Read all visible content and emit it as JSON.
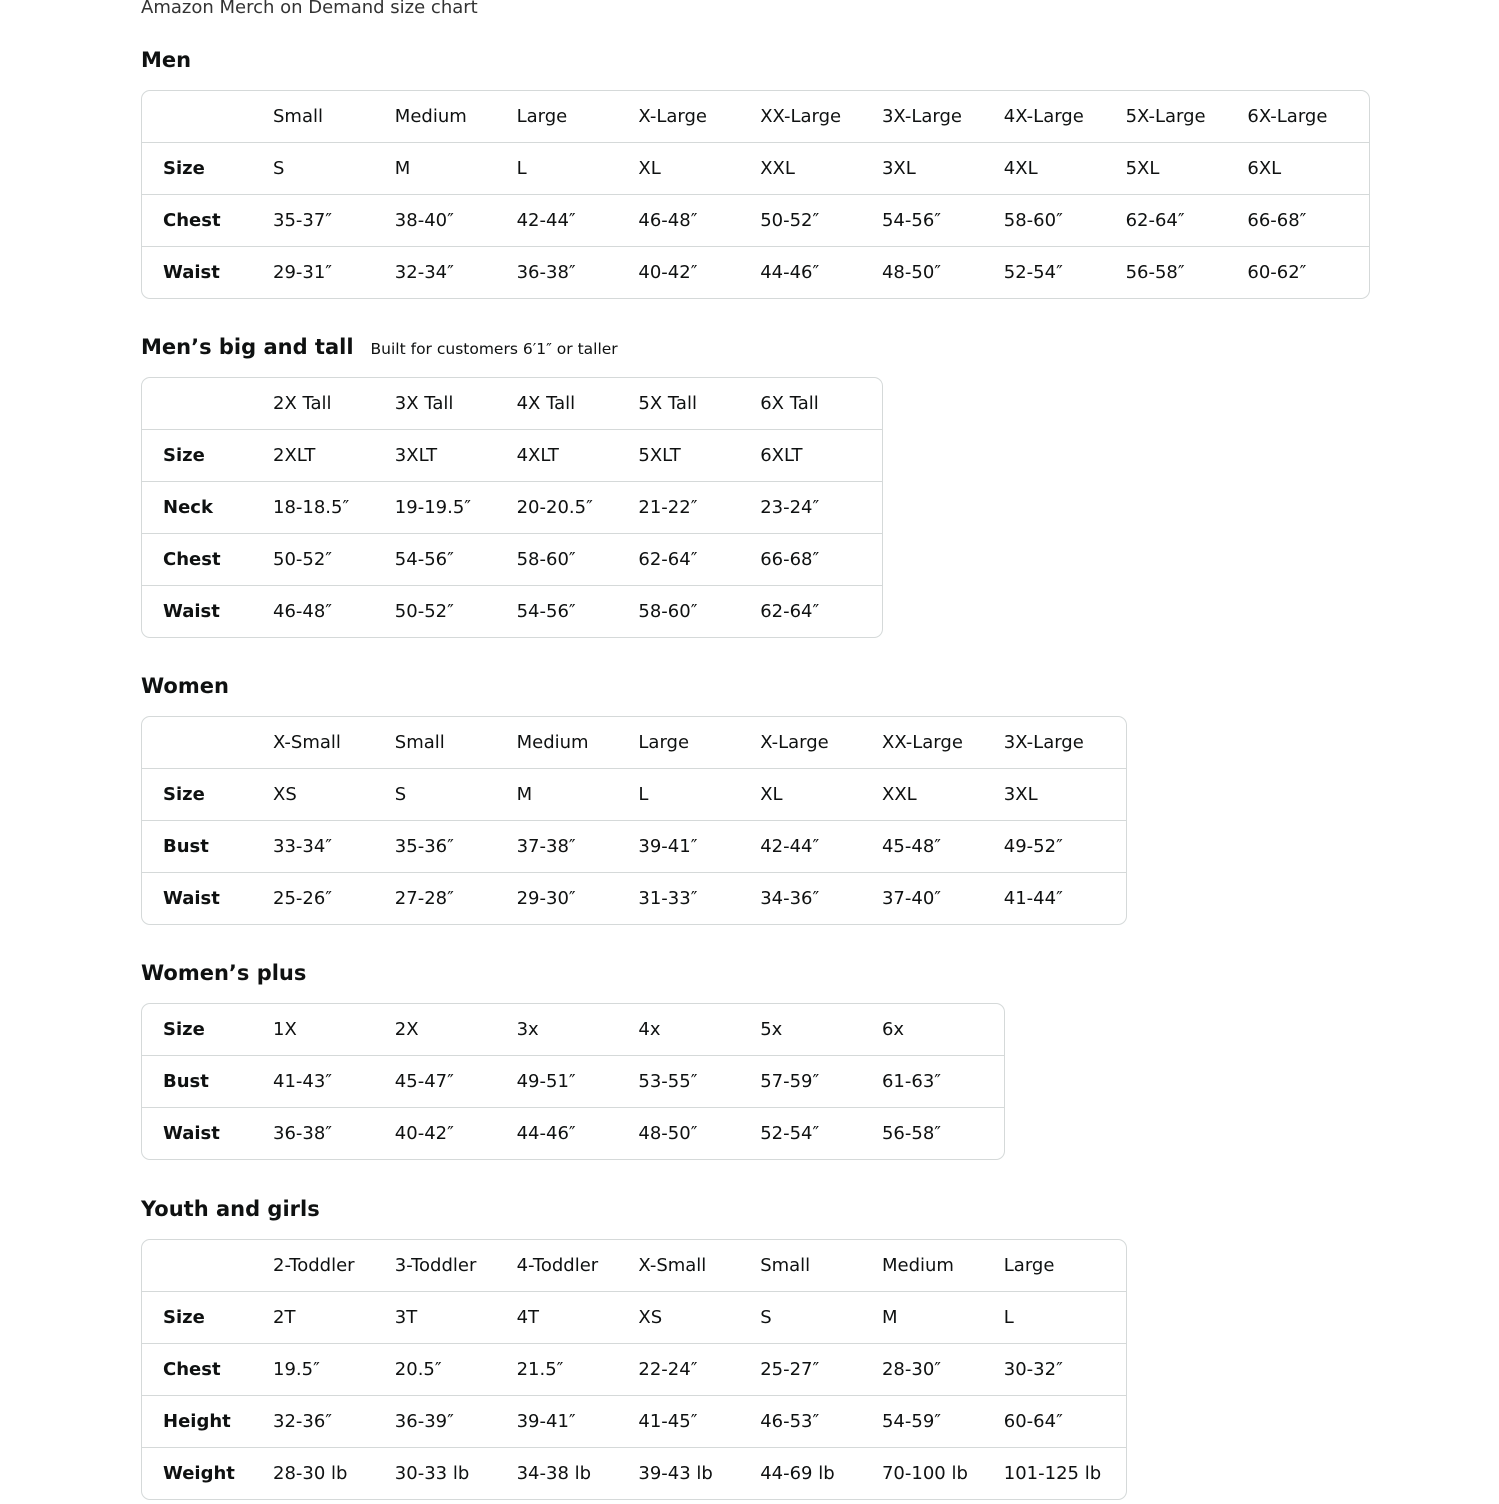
{
  "title": "Amazon Merch on Demand size chart",
  "sections": [
    {
      "title": "Men",
      "subtitle": "",
      "header": [
        "Small",
        "Medium",
        "Large",
        "X-Large",
        "XX-Large",
        "3X-Large",
        "4X-Large",
        "5X-Large",
        "6X-Large"
      ],
      "rows": [
        {
          "label": "Size",
          "values": [
            "S",
            "M",
            "L",
            "XL",
            "XXL",
            "3XL",
            "4XL",
            "5XL",
            "6XL"
          ]
        },
        {
          "label": "Chest",
          "values": [
            "35-37″",
            "38-40″",
            "42-44″",
            "46-48″",
            "50-52″",
            "54-56″",
            "58-60″",
            "62-64″",
            "66-68″"
          ]
        },
        {
          "label": "Waist",
          "values": [
            "29-31″",
            "32-34″",
            "36-38″",
            "40-42″",
            "44-46″",
            "48-50″",
            "52-54″",
            "56-58″",
            "60-62″"
          ]
        }
      ]
    },
    {
      "title": "Men’s big and tall",
      "subtitle": "Built for customers 6′1″ or taller",
      "header": [
        "2X Tall",
        "3X Tall",
        "4X Tall",
        "5X Tall",
        "6X Tall"
      ],
      "rows": [
        {
          "label": "Size",
          "values": [
            "2XLT",
            "3XLT",
            "4XLT",
            "5XLT",
            "6XLT"
          ]
        },
        {
          "label": "Neck",
          "values": [
            "18-18.5″",
            "19-19.5″",
            "20-20.5″",
            "21-22″",
            "23-24″"
          ]
        },
        {
          "label": "Chest",
          "values": [
            "50-52″",
            "54-56″",
            "58-60″",
            "62-64″",
            "66-68″"
          ]
        },
        {
          "label": "Waist",
          "values": [
            "46-48″",
            "50-52″",
            "54-56″",
            "58-60″",
            "62-64″"
          ]
        }
      ]
    },
    {
      "title": "Women",
      "subtitle": "",
      "header": [
        "X-Small",
        "Small",
        "Medium",
        "Large",
        "X-Large",
        "XX-Large",
        "3X-Large"
      ],
      "rows": [
        {
          "label": "Size",
          "values": [
            "XS",
            "S",
            "M",
            "L",
            "XL",
            "XXL",
            "3XL"
          ]
        },
        {
          "label": "Bust",
          "values": [
            "33-34″",
            "35-36″",
            "37-38″",
            "39-41″",
            "42-44″",
            "45-48″",
            "49-52″"
          ]
        },
        {
          "label": "Waist",
          "values": [
            "25-26″",
            "27-28″",
            "29-30″",
            "31-33″",
            "34-36″",
            "37-40″",
            "41-44″"
          ]
        }
      ]
    },
    {
      "title": "Women’s plus",
      "subtitle": "",
      "header": null,
      "rows": [
        {
          "label": "Size",
          "values": [
            "1X",
            "2X",
            "3x",
            "4x",
            "5x",
            "6x"
          ]
        },
        {
          "label": "Bust",
          "values": [
            "41-43″",
            "45-47″",
            "49-51″",
            "53-55″",
            "57-59″",
            "61-63″"
          ]
        },
        {
          "label": "Waist",
          "values": [
            "36-38″",
            "40-42″",
            "44-46″",
            "48-50″",
            "52-54″",
            "56-58″"
          ]
        }
      ]
    },
    {
      "title": "Youth and girls",
      "subtitle": "",
      "header": [
        "2-Toddler",
        "3-Toddler",
        "4-Toddler",
        "X-Small",
        "Small",
        "Medium",
        "Large"
      ],
      "rows": [
        {
          "label": "Size",
          "values": [
            "2T",
            "3T",
            "4T",
            "XS",
            "S",
            "M",
            "L"
          ]
        },
        {
          "label": "Chest",
          "values": [
            "19.5″",
            "20.5″",
            "21.5″",
            "22-24″",
            "25-27″",
            "28-30″",
            "30-32″"
          ]
        },
        {
          "label": "Height",
          "values": [
            "32-36″",
            "36-39″",
            "39-41″",
            "41-45″",
            "46-53″",
            "54-59″",
            "60-64″"
          ]
        },
        {
          "label": "Weight",
          "values": [
            "28-30 lb",
            "30-33 lb",
            "34-38 lb",
            "39-43 lb",
            "44-69 lb",
            "70-100 lb",
            "101-125 lb"
          ]
        }
      ]
    }
  ]
}
